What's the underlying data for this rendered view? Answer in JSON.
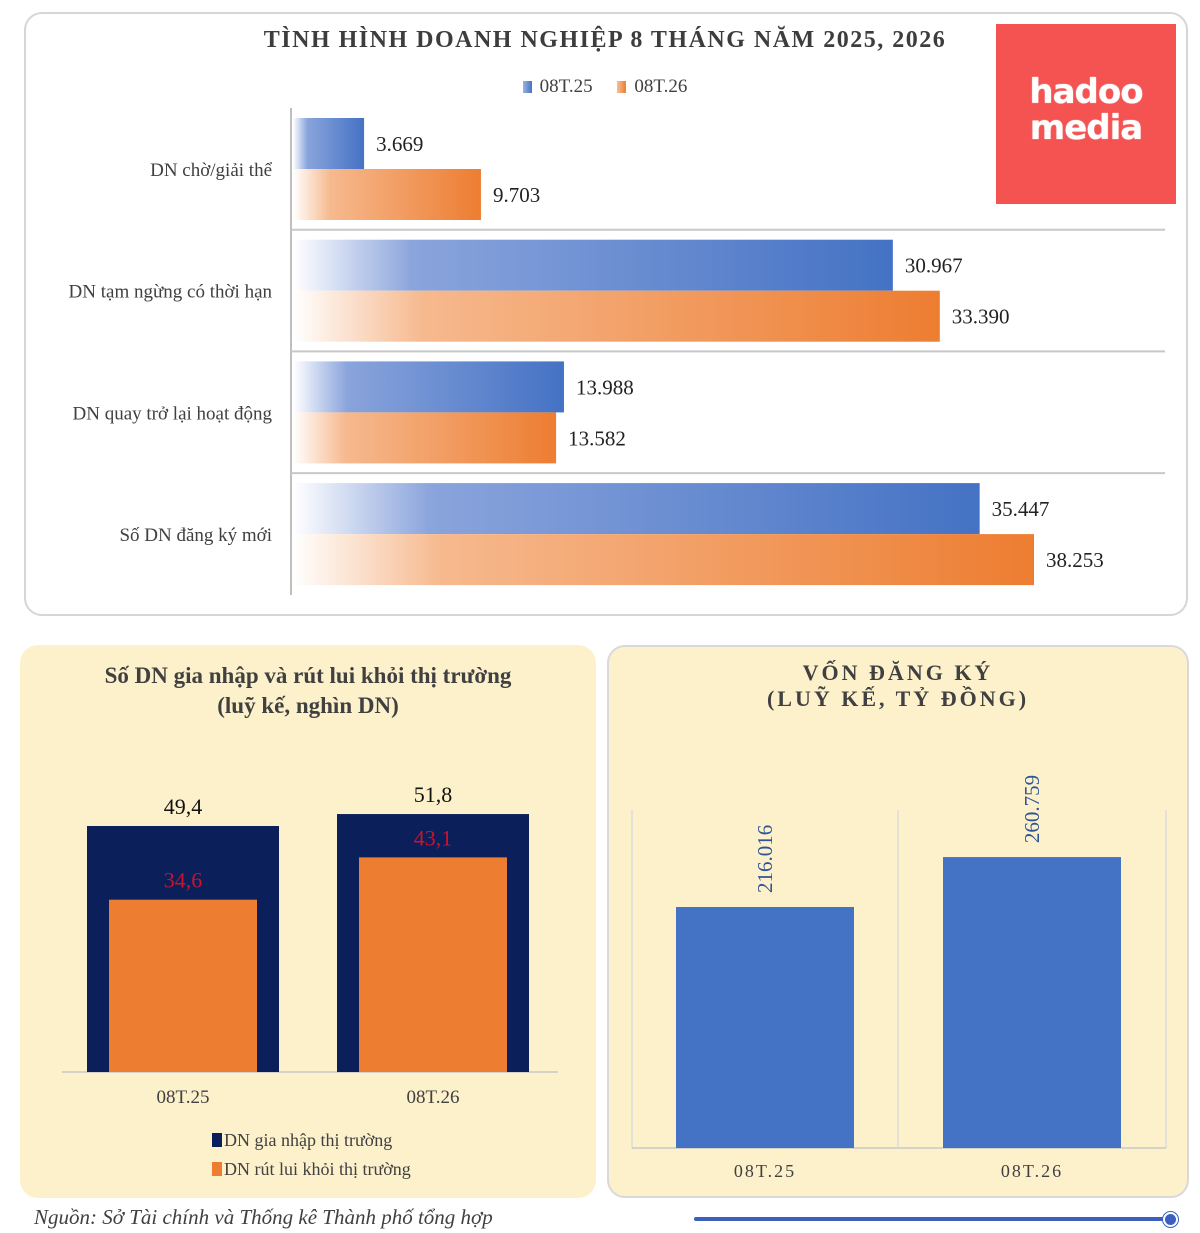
{
  "logo": {
    "text": "hadoo media",
    "color": "#f55252"
  },
  "colors": {
    "blue": "#4472c4",
    "orange": "#ed7d31",
    "navy": "#0b1f5a",
    "red_label": "#d0112b",
    "panel_bg": "#fdf1cc"
  },
  "source": "Nguồn: Sở Tài chính và Thống kê Thành phố tổng hợp",
  "chart_data": [
    {
      "type": "bar",
      "orientation": "horizontal",
      "title": "TÌNH HÌNH DOANH NGHIỆP 8 THÁNG NĂM 2025, 2026",
      "categories": [
        "DN chờ/giải thể",
        "DN tạm ngừng có thời hạn",
        "DN quay trở lại hoạt động",
        "Số DN đăng ký mới"
      ],
      "series": [
        {
          "name": "08T.25",
          "values": [
            3669,
            30967,
            13988,
            35447
          ],
          "labels": [
            "3.669",
            "30.967",
            "13.988",
            "35.447"
          ],
          "color": "#4472c4"
        },
        {
          "name": "08T.26",
          "values": [
            9703,
            33390,
            13582,
            38253
          ],
          "labels": [
            "9.703",
            "33.390",
            "13.582",
            "38.253"
          ],
          "color": "#ed7d31"
        }
      ],
      "xlim": [
        0,
        45000
      ],
      "legend": "top",
      "grid": false
    },
    {
      "type": "bar",
      "title": "Số DN gia nhập và rút lui khỏi thị trường",
      "subtitle": "(luỹ kế, nghìn DN)",
      "categories": [
        "08T.25",
        "08T.26"
      ],
      "series": [
        {
          "name": "DN gia nhập thị trường",
          "values": [
            49.4,
            51.8
          ],
          "labels": [
            "49,4",
            "51,8"
          ],
          "color": "#0b1f5a"
        },
        {
          "name": "DN rút lui khỏi thị trường",
          "values": [
            34.6,
            43.1
          ],
          "labels": [
            "34,6",
            "43,1"
          ],
          "color": "#ed7d31"
        }
      ],
      "ylim": [
        0,
        62
      ],
      "legend": "bottom",
      "grid": false
    },
    {
      "type": "bar",
      "title": "VỐN ĐĂNG KÝ",
      "subtitle": "(LUỸ KẾ, TỶ ĐỒNG)",
      "categories": [
        "08T.25",
        "08T.26"
      ],
      "values": [
        216016,
        260759
      ],
      "labels": [
        "216.016",
        "260.759"
      ],
      "color": "#4472c4",
      "ylim": [
        0,
        360000
      ],
      "grid": true
    }
  ]
}
